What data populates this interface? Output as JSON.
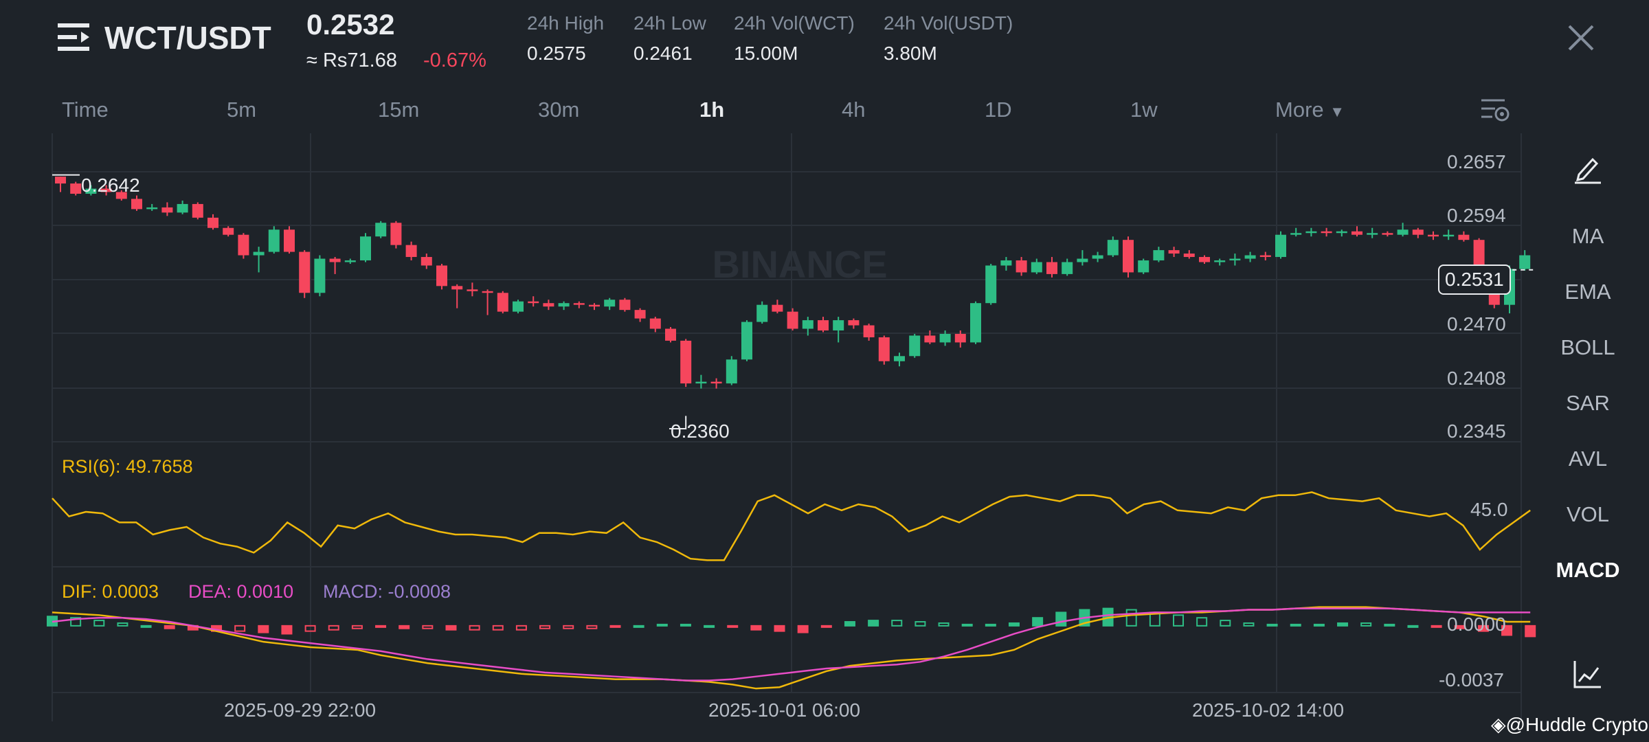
{
  "header": {
    "pair": "WCT/USDT",
    "price": "0.2532",
    "approx": "≈ Rs71.68",
    "change": "-0.67%",
    "stats": [
      {
        "label": "24h High",
        "value": "0.2575"
      },
      {
        "label": "24h Low",
        "value": "0.2461"
      },
      {
        "label": "24h Vol(WCT)",
        "value": "15.00M"
      },
      {
        "label": "24h Vol(USDT)",
        "value": "3.80M"
      }
    ]
  },
  "tabs": [
    "Time",
    "5m",
    "15m",
    "30m",
    "1h",
    "4h",
    "1D",
    "1w",
    "More"
  ],
  "active_tab": "1h",
  "indicators": [
    "MA",
    "EMA",
    "BOLL",
    "SAR",
    "AVL",
    "VOL",
    "MACD"
  ],
  "active_indicator": "MACD",
  "colors": {
    "up": "#2ebd85",
    "down": "#f6465d",
    "rsi": "#f0b90b",
    "dif": "#f0b90b",
    "dea": "#e84dc6",
    "macd": "#9c7fd0",
    "bg": "#1e2329"
  },
  "brand_watermark": "BINANCE",
  "footer_watermark": "@Huddle Crypto",
  "chart_data": {
    "type": "candlestick",
    "price_ticks": [
      "0.2657",
      "0.2594",
      "0.2470",
      "0.2408",
      "0.2345"
    ],
    "current_price_label": "0.2531",
    "high_marker": "0.2642",
    "low_marker": "0.2360",
    "time_labels": [
      "2025-09-29 22:00",
      "2025-10-01 06:00",
      "2025-10-02 14:00"
    ],
    "ylim": [
      0.2345,
      0.2657
    ],
    "candles": [
      [
        0.264,
        0.264,
        0.2622,
        0.2632
      ],
      [
        0.2632,
        0.2634,
        0.2618,
        0.262
      ],
      [
        0.262,
        0.263,
        0.2618,
        0.2626
      ],
      [
        0.2626,
        0.263,
        0.2618,
        0.2622
      ],
      [
        0.2622,
        0.2624,
        0.2612,
        0.2614
      ],
      [
        0.2614,
        0.2618,
        0.26,
        0.2602
      ],
      [
        0.2602,
        0.2608,
        0.26,
        0.2604
      ],
      [
        0.2604,
        0.261,
        0.2594,
        0.2598
      ],
      [
        0.2598,
        0.2612,
        0.2596,
        0.2608
      ],
      [
        0.2608,
        0.261,
        0.259,
        0.2592
      ],
      [
        0.2592,
        0.2596,
        0.2578,
        0.258
      ],
      [
        0.258,
        0.2582,
        0.257,
        0.2572
      ],
      [
        0.2572,
        0.2574,
        0.2544,
        0.2548
      ],
      [
        0.2548,
        0.2558,
        0.2528,
        0.2552
      ],
      [
        0.2552,
        0.2582,
        0.255,
        0.2578
      ],
      [
        0.2578,
        0.2582,
        0.255,
        0.2552
      ],
      [
        0.2552,
        0.2554,
        0.2498,
        0.2504
      ],
      [
        0.2504,
        0.2548,
        0.25,
        0.2544
      ],
      [
        0.2544,
        0.2546,
        0.2526,
        0.254
      ],
      [
        0.254,
        0.2544,
        0.2538,
        0.2542
      ],
      [
        0.2542,
        0.2574,
        0.254,
        0.257
      ],
      [
        0.257,
        0.2588,
        0.2568,
        0.2586
      ],
      [
        0.2586,
        0.2588,
        0.2556,
        0.256
      ],
      [
        0.256,
        0.2564,
        0.2542,
        0.2546
      ],
      [
        0.2546,
        0.255,
        0.2532,
        0.2536
      ],
      [
        0.2536,
        0.2538,
        0.2508,
        0.2512
      ],
      [
        0.2512,
        0.2514,
        0.2486,
        0.2508
      ],
      [
        0.2508,
        0.2516,
        0.25,
        0.2506
      ],
      [
        0.2506,
        0.2508,
        0.2478,
        0.2504
      ],
      [
        0.2504,
        0.2506,
        0.248,
        0.2482
      ],
      [
        0.2482,
        0.2496,
        0.248,
        0.2494
      ],
      [
        0.2494,
        0.25,
        0.2488,
        0.2492
      ],
      [
        0.2492,
        0.2496,
        0.2484,
        0.2488
      ],
      [
        0.2488,
        0.2494,
        0.2484,
        0.2492
      ],
      [
        0.2492,
        0.2494,
        0.2486,
        0.249
      ],
      [
        0.249,
        0.2492,
        0.2484,
        0.2488
      ],
      [
        0.2488,
        0.2498,
        0.2484,
        0.2496
      ],
      [
        0.2496,
        0.2498,
        0.2482,
        0.2484
      ],
      [
        0.2484,
        0.2486,
        0.247,
        0.2474
      ],
      [
        0.2474,
        0.2476,
        0.2458,
        0.2462
      ],
      [
        0.2462,
        0.2464,
        0.2446,
        0.2448
      ],
      [
        0.2448,
        0.245,
        0.2394,
        0.2398
      ],
      [
        0.2398,
        0.2408,
        0.2392,
        0.24
      ],
      [
        0.24,
        0.2404,
        0.2392,
        0.2398
      ],
      [
        0.2398,
        0.243,
        0.2396,
        0.2426
      ],
      [
        0.2426,
        0.2472,
        0.2424,
        0.247
      ],
      [
        0.247,
        0.2494,
        0.2468,
        0.249
      ],
      [
        0.249,
        0.2496,
        0.248,
        0.2482
      ],
      [
        0.2482,
        0.2486,
        0.246,
        0.2462
      ],
      [
        0.2462,
        0.2476,
        0.2454,
        0.2472
      ],
      [
        0.2472,
        0.2476,
        0.2458,
        0.246
      ],
      [
        0.246,
        0.2476,
        0.2446,
        0.2472
      ],
      [
        0.2472,
        0.2474,
        0.2462,
        0.2466
      ],
      [
        0.2466,
        0.2468,
        0.2448,
        0.2452
      ],
      [
        0.2452,
        0.2454,
        0.242,
        0.2424
      ],
      [
        0.2424,
        0.2434,
        0.2418,
        0.243
      ],
      [
        0.243,
        0.2456,
        0.2428,
        0.2454
      ],
      [
        0.2454,
        0.246,
        0.2444,
        0.2446
      ],
      [
        0.2446,
        0.246,
        0.2442,
        0.2456
      ],
      [
        0.2456,
        0.246,
        0.244,
        0.2446
      ],
      [
        0.2446,
        0.2494,
        0.2444,
        0.2492
      ],
      [
        0.2492,
        0.2538,
        0.249,
        0.2536
      ],
      [
        0.2536,
        0.2546,
        0.253,
        0.2542
      ],
      [
        0.2542,
        0.2546,
        0.2524,
        0.2528
      ],
      [
        0.2528,
        0.2544,
        0.2526,
        0.254
      ],
      [
        0.254,
        0.2546,
        0.2522,
        0.2526
      ],
      [
        0.2526,
        0.2544,
        0.2524,
        0.254
      ],
      [
        0.254,
        0.2554,
        0.2536,
        0.2544
      ],
      [
        0.2544,
        0.2552,
        0.254,
        0.2548
      ],
      [
        0.2548,
        0.257,
        0.2546,
        0.2566
      ],
      [
        0.2566,
        0.257,
        0.2522,
        0.2528
      ],
      [
        0.2528,
        0.2544,
        0.2526,
        0.2542
      ],
      [
        0.2542,
        0.2558,
        0.254,
        0.2554
      ],
      [
        0.2554,
        0.2558,
        0.2546,
        0.255
      ],
      [
        0.255,
        0.2554,
        0.2544,
        0.2546
      ],
      [
        0.2546,
        0.2548,
        0.2538,
        0.254
      ],
      [
        0.254,
        0.2544,
        0.2536,
        0.2542
      ],
      [
        0.2542,
        0.255,
        0.2536,
        0.2544
      ],
      [
        0.2544,
        0.2552,
        0.254,
        0.2548
      ],
      [
        0.2548,
        0.2552,
        0.2542,
        0.2546
      ],
      [
        0.2546,
        0.2576,
        0.2544,
        0.2572
      ],
      [
        0.2572,
        0.258,
        0.257,
        0.2574
      ],
      [
        0.2574,
        0.258,
        0.257,
        0.2576
      ],
      [
        0.2576,
        0.258,
        0.257,
        0.2574
      ],
      [
        0.2574,
        0.2578,
        0.257,
        0.2576
      ],
      [
        0.2576,
        0.2582,
        0.257,
        0.2572
      ],
      [
        0.2572,
        0.258,
        0.2568,
        0.2574
      ],
      [
        0.2574,
        0.2576,
        0.257,
        0.2572
      ],
      [
        0.2572,
        0.2586,
        0.257,
        0.2578
      ],
      [
        0.2578,
        0.258,
        0.2568,
        0.2572
      ],
      [
        0.2572,
        0.2576,
        0.2566,
        0.257
      ],
      [
        0.257,
        0.2578,
        0.2566,
        0.2572
      ],
      [
        0.2572,
        0.2576,
        0.2564,
        0.2566
      ],
      [
        0.2566,
        0.2568,
        0.2528,
        0.2532
      ],
      [
        0.2532,
        0.2536,
        0.2486,
        0.249
      ],
      [
        0.249,
        0.2536,
        0.248,
        0.2532
      ],
      [
        0.2532,
        0.2554,
        0.253,
        0.2548
      ]
    ],
    "rsi": {
      "label": "RSI(6): 49.7658",
      "tick": "45.0",
      "ylim": [
        20,
        80
      ],
      "values": [
        64,
        52,
        55,
        54,
        48,
        48,
        40,
        43,
        45,
        38,
        34,
        32,
        28,
        36,
        48,
        41,
        32,
        46,
        44,
        50,
        54,
        48,
        45,
        42,
        40,
        40,
        39,
        38,
        35,
        41,
        41,
        40,
        42,
        41,
        48,
        38,
        35,
        30,
        24,
        23,
        23,
        42,
        62,
        66,
        60,
        54,
        60,
        56,
        60,
        58,
        52,
        42,
        46,
        52,
        48,
        54,
        60,
        65,
        66,
        64,
        62,
        66,
        66,
        64,
        54,
        60,
        62,
        56,
        55,
        54,
        58,
        56,
        64,
        66,
        66,
        68,
        64,
        63,
        62,
        64,
        56,
        54,
        52,
        54,
        46,
        30,
        40,
        48,
        56
      ]
    },
    "macd": {
      "dif_label": "DIF: 0.0003",
      "dea_label": "DEA: 0.0010",
      "macd_label": "MACD: -0.0008",
      "ticks": [
        "0.0000",
        "-0.0037"
      ],
      "ylim": [
        -0.005,
        0.002
      ],
      "dif": [
        0.001,
        0.0009,
        0.0008,
        0.0006,
        0.0004,
        0.0002,
        0.0,
        -0.0004,
        -0.0008,
        -0.0012,
        -0.0014,
        -0.0016,
        -0.0017,
        -0.0018,
        -0.0022,
        -0.0025,
        -0.0028,
        -0.003,
        -0.0032,
        -0.0034,
        -0.0036,
        -0.0037,
        -0.0038,
        -0.0039,
        -0.004,
        -0.004,
        -0.004,
        -0.0041,
        -0.0042,
        -0.0044,
        -0.0047,
        -0.0046,
        -0.004,
        -0.0034,
        -0.003,
        -0.0028,
        -0.0026,
        -0.0025,
        -0.0024,
        -0.0023,
        -0.0022,
        -0.0018,
        -0.001,
        -0.0004,
        0.0002,
        0.0006,
        0.0008,
        0.0009,
        0.001,
        0.001,
        0.0011,
        0.0012,
        0.0012,
        0.0013,
        0.0014,
        0.0014,
        0.0014,
        0.0013,
        0.0012,
        0.0011,
        0.001,
        0.0007,
        0.0003,
        0.0003
      ],
      "dea": [
        0.0003,
        0.0005,
        0.0006,
        0.0006,
        0.0005,
        0.0003,
        0.0,
        -0.0003,
        -0.0006,
        -0.0009,
        -0.0011,
        -0.0013,
        -0.0015,
        -0.0017,
        -0.0019,
        -0.0022,
        -0.0025,
        -0.0027,
        -0.0029,
        -0.0031,
        -0.0033,
        -0.0035,
        -0.0036,
        -0.0037,
        -0.0038,
        -0.0039,
        -0.004,
        -0.0041,
        -0.0041,
        -0.004,
        -0.0038,
        -0.0036,
        -0.0034,
        -0.0032,
        -0.0031,
        -0.003,
        -0.0029,
        -0.0027,
        -0.0023,
        -0.0018,
        -0.0012,
        -0.0006,
        -0.0001,
        0.0003,
        0.0006,
        0.0008,
        0.0009,
        0.001,
        0.001,
        0.0011,
        0.0011,
        0.0012,
        0.0012,
        0.0013,
        0.0013,
        0.0013,
        0.0013,
        0.0013,
        0.0012,
        0.0011,
        0.001,
        0.001,
        0.001,
        0.001
      ],
      "hist": [
        0.0007,
        0.0006,
        0.0004,
        0.0002,
        0.0,
        -0.0002,
        -0.0003,
        -0.0004,
        -0.0004,
        -0.0005,
        -0.0006,
        -0.0004,
        -0.0003,
        -0.0002,
        -0.0001,
        -0.0002,
        -0.0002,
        -0.0003,
        -0.0003,
        -0.0003,
        -0.0003,
        -0.0002,
        -0.0002,
        -0.0002,
        -0.0001,
        0.0,
        0.0001,
        0.0001,
        0.0,
        -0.0001,
        -0.0003,
        -0.0004,
        -0.0005,
        -0.0001,
        0.0003,
        0.0004,
        0.0004,
        0.0003,
        0.0002,
        0.0001,
        0.0001,
        0.0002,
        0.0006,
        0.001,
        0.0012,
        0.0013,
        0.0012,
        0.001,
        0.0008,
        0.0006,
        0.0004,
        0.0002,
        0.0001,
        0.0001,
        0.0001,
        0.0002,
        0.0002,
        0.0001,
        0.0,
        -0.0001,
        -0.0002,
        -0.0004,
        -0.0007,
        -0.0008
      ]
    }
  }
}
